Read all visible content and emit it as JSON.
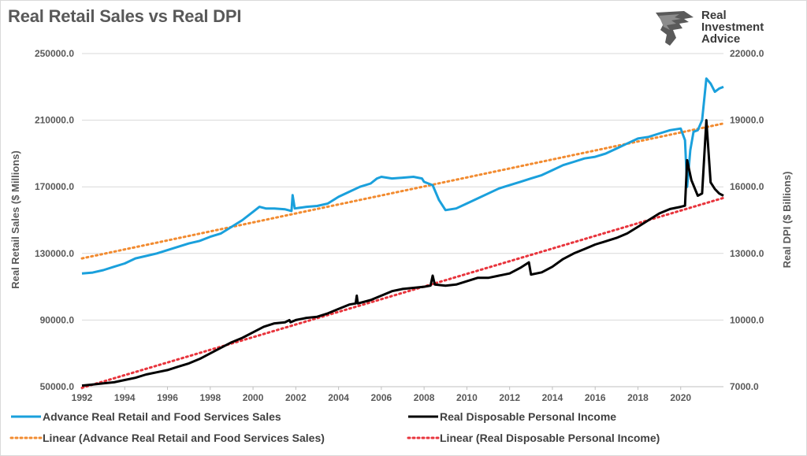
{
  "title": "Real Retail Sales vs Real DPI",
  "brand": {
    "lines": [
      "Real",
      "Investment",
      "Advice"
    ],
    "logo": "eagle-head-logo"
  },
  "chart_data": {
    "type": "line",
    "title": "Real Retail Sales vs Real DPI",
    "ylabel_left": "Real Retail Sales ($ Millions)",
    "ylabel_right": "Real DPI ($ Billions)",
    "x_ticks": [
      "1992",
      "1994",
      "1996",
      "1998",
      "2000",
      "2002",
      "2004",
      "2006",
      "2008",
      "2010",
      "2012",
      "2014",
      "2016",
      "2018",
      "2020"
    ],
    "xlim": [
      1992,
      2022
    ],
    "ylim_left": [
      50000,
      250000
    ],
    "ylim_right": [
      7000,
      22000
    ],
    "y_ticks_left": [
      "50000.0",
      "90000.0",
      "130000.0",
      "170000.0",
      "210000.0",
      "250000.0"
    ],
    "y_ticks_right": [
      "7000.0",
      "10000.0",
      "13000.0",
      "16000.0",
      "19000.0",
      "22000.0"
    ],
    "grid": "horizontal",
    "legend_position": "bottom",
    "series": [
      {
        "name": "Advance Real Retail and Food Services Sales",
        "axis": "left",
        "color": "#1aa0dc",
        "style": "solid",
        "points": [
          [
            1992.0,
            118000
          ],
          [
            1992.5,
            118500
          ],
          [
            1993.0,
            120000
          ],
          [
            1993.5,
            122000
          ],
          [
            1994.0,
            124000
          ],
          [
            1994.5,
            127000
          ],
          [
            1995.0,
            128500
          ],
          [
            1995.5,
            130000
          ],
          [
            1996.0,
            132000
          ],
          [
            1996.5,
            134000
          ],
          [
            1997.0,
            136000
          ],
          [
            1997.5,
            137500
          ],
          [
            1998.0,
            140000
          ],
          [
            1998.5,
            142000
          ],
          [
            1999.0,
            146000
          ],
          [
            1999.5,
            150000
          ],
          [
            2000.0,
            155000
          ],
          [
            2000.3,
            158000
          ],
          [
            2000.6,
            157000
          ],
          [
            2001.0,
            157000
          ],
          [
            2001.5,
            156500
          ],
          [
            2001.8,
            155500
          ],
          [
            2001.85,
            165000
          ],
          [
            2001.95,
            157000
          ],
          [
            2002.5,
            158000
          ],
          [
            2003.0,
            158500
          ],
          [
            2003.5,
            160000
          ],
          [
            2004.0,
            164000
          ],
          [
            2004.5,
            167000
          ],
          [
            2005.0,
            170000
          ],
          [
            2005.5,
            172000
          ],
          [
            2005.8,
            175000
          ],
          [
            2006.0,
            176000
          ],
          [
            2006.5,
            175000
          ],
          [
            2007.0,
            175500
          ],
          [
            2007.5,
            176000
          ],
          [
            2007.9,
            175000
          ],
          [
            2008.0,
            173000
          ],
          [
            2008.4,
            171000
          ],
          [
            2008.7,
            162000
          ],
          [
            2009.0,
            156000
          ],
          [
            2009.5,
            157000
          ],
          [
            2010.0,
            160000
          ],
          [
            2010.5,
            163000
          ],
          [
            2011.0,
            166000
          ],
          [
            2011.5,
            169000
          ],
          [
            2012.0,
            171000
          ],
          [
            2012.5,
            173000
          ],
          [
            2013.0,
            175000
          ],
          [
            2013.5,
            177000
          ],
          [
            2014.0,
            180000
          ],
          [
            2014.5,
            183000
          ],
          [
            2015.0,
            185000
          ],
          [
            2015.5,
            187000
          ],
          [
            2016.0,
            188000
          ],
          [
            2016.5,
            190000
          ],
          [
            2017.0,
            193000
          ],
          [
            2017.5,
            196000
          ],
          [
            2018.0,
            199000
          ],
          [
            2018.5,
            200000
          ],
          [
            2019.0,
            202000
          ],
          [
            2019.5,
            204000
          ],
          [
            2020.0,
            205000
          ],
          [
            2020.2,
            198000
          ],
          [
            2020.3,
            170000
          ],
          [
            2020.45,
            192000
          ],
          [
            2020.6,
            203000
          ],
          [
            2020.8,
            204000
          ],
          [
            2021.0,
            210000
          ],
          [
            2021.2,
            235000
          ],
          [
            2021.4,
            232000
          ],
          [
            2021.6,
            227000
          ],
          [
            2021.8,
            229000
          ],
          [
            2022.0,
            230000
          ]
        ]
      },
      {
        "name": "Real Disposable Personal Income",
        "axis": "right",
        "color": "#000000",
        "style": "solid",
        "points": [
          [
            1992.0,
            7050
          ],
          [
            1992.5,
            7100
          ],
          [
            1993.0,
            7150
          ],
          [
            1993.5,
            7200
          ],
          [
            1994.0,
            7300
          ],
          [
            1994.5,
            7400
          ],
          [
            1995.0,
            7550
          ],
          [
            1995.5,
            7650
          ],
          [
            1996.0,
            7750
          ],
          [
            1996.5,
            7900
          ],
          [
            1997.0,
            8050
          ],
          [
            1997.5,
            8250
          ],
          [
            1998.0,
            8500
          ],
          [
            1998.5,
            8750
          ],
          [
            1999.0,
            9000
          ],
          [
            1999.5,
            9200
          ],
          [
            2000.0,
            9450
          ],
          [
            2000.5,
            9700
          ],
          [
            2001.0,
            9850
          ],
          [
            2001.5,
            9900
          ],
          [
            2001.7,
            10000
          ],
          [
            2001.75,
            9900
          ],
          [
            2002.0,
            10000
          ],
          [
            2002.5,
            10100
          ],
          [
            2003.0,
            10150
          ],
          [
            2003.5,
            10300
          ],
          [
            2004.0,
            10500
          ],
          [
            2004.5,
            10700
          ],
          [
            2004.8,
            10750
          ],
          [
            2004.85,
            11100
          ],
          [
            2004.9,
            10750
          ],
          [
            2005.5,
            10900
          ],
          [
            2006.0,
            11100
          ],
          [
            2006.5,
            11300
          ],
          [
            2007.0,
            11400
          ],
          [
            2007.5,
            11450
          ],
          [
            2008.0,
            11500
          ],
          [
            2008.3,
            11550
          ],
          [
            2008.4,
            12000
          ],
          [
            2008.5,
            11600
          ],
          [
            2009.0,
            11550
          ],
          [
            2009.5,
            11600
          ],
          [
            2010.0,
            11750
          ],
          [
            2010.5,
            11900
          ],
          [
            2011.0,
            11900
          ],
          [
            2011.5,
            12000
          ],
          [
            2012.0,
            12100
          ],
          [
            2012.5,
            12350
          ],
          [
            2012.9,
            12600
          ],
          [
            2013.0,
            12050
          ],
          [
            2013.5,
            12150
          ],
          [
            2014.0,
            12400
          ],
          [
            2014.5,
            12750
          ],
          [
            2015.0,
            13000
          ],
          [
            2015.5,
            13200
          ],
          [
            2016.0,
            13400
          ],
          [
            2016.5,
            13550
          ],
          [
            2017.0,
            13700
          ],
          [
            2017.5,
            13900
          ],
          [
            2018.0,
            14200
          ],
          [
            2018.5,
            14500
          ],
          [
            2019.0,
            14800
          ],
          [
            2019.5,
            15000
          ],
          [
            2020.0,
            15100
          ],
          [
            2020.2,
            15150
          ],
          [
            2020.3,
            17200
          ],
          [
            2020.5,
            16300
          ],
          [
            2020.8,
            15600
          ],
          [
            2021.0,
            15700
          ],
          [
            2021.2,
            19000
          ],
          [
            2021.4,
            16200
          ],
          [
            2021.6,
            15900
          ],
          [
            2021.8,
            15700
          ],
          [
            2022.0,
            15600
          ]
        ]
      },
      {
        "name": "Linear (Advance Real Retail and Food Services Sales)",
        "axis": "left",
        "color": "#f28b30",
        "style": "dotted",
        "points": [
          [
            1992.0,
            127000
          ],
          [
            2022.0,
            208000
          ]
        ]
      },
      {
        "name": "Linear (Real Disposable Personal Income)",
        "axis": "right",
        "color": "#e8343c",
        "style": "dotted",
        "points": [
          [
            1992.0,
            6950
          ],
          [
            2022.0,
            15500
          ]
        ]
      }
    ]
  }
}
